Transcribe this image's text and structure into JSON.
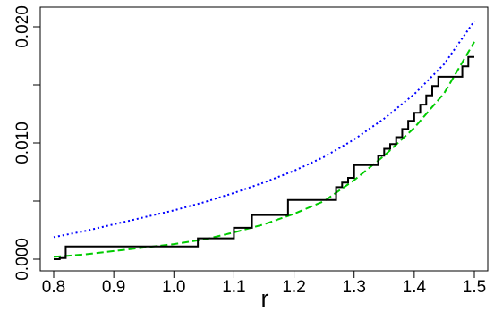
{
  "chart_data": {
    "type": "line",
    "title": "",
    "xlabel": "r",
    "ylabel": "",
    "xlim": [
      0.8,
      1.5
    ],
    "ylim": [
      0.0,
      0.02
    ],
    "x_ticks": [
      "0.8",
      "0.9",
      "1.0",
      "1.1",
      "1.2",
      "1.3",
      "1.4",
      "1.5"
    ],
    "y_ticks": [
      "0.000",
      "0.010",
      "0.020"
    ],
    "y_tick_values": [
      0.0,
      0.01,
      0.02
    ],
    "grid": false,
    "series": [
      {
        "style": "dotted",
        "color": "#0000ff",
        "x": [
          0.8,
          0.85,
          0.9,
          0.95,
          1.0,
          1.05,
          1.1,
          1.15,
          1.2,
          1.25,
          1.3,
          1.35,
          1.4,
          1.45,
          1.5
        ],
        "y": [
          0.0019,
          0.0024,
          0.003,
          0.0036,
          0.0042,
          0.0049,
          0.0057,
          0.0066,
          0.0076,
          0.0088,
          0.0103,
          0.0121,
          0.0142,
          0.0168,
          0.0205
        ]
      },
      {
        "style": "dashed",
        "color": "#00cc00",
        "x": [
          0.8,
          0.85,
          0.9,
          0.95,
          1.0,
          1.05,
          1.1,
          1.15,
          1.2,
          1.25,
          1.3,
          1.35,
          1.4,
          1.45,
          1.5
        ],
        "y": [
          0.0002,
          0.0004,
          0.0007,
          0.001,
          0.0013,
          0.0017,
          0.0023,
          0.003,
          0.0039,
          0.005,
          0.0068,
          0.0089,
          0.0113,
          0.0143,
          0.0187
        ]
      },
      {
        "style": "step",
        "color": "#000000",
        "x": [
          0.8,
          0.81,
          0.82,
          1.04,
          1.1,
          1.13,
          1.19,
          1.27,
          1.28,
          1.29,
          1.3,
          1.34,
          1.35,
          1.36,
          1.37,
          1.38,
          1.39,
          1.4,
          1.41,
          1.42,
          1.43,
          1.44,
          1.48,
          1.49,
          1.5
        ],
        "y": [
          0.0,
          0.0001,
          0.0011,
          0.0018,
          0.0027,
          0.0038,
          0.0051,
          0.0062,
          0.0066,
          0.007,
          0.0081,
          0.0089,
          0.0095,
          0.0099,
          0.0105,
          0.0112,
          0.0119,
          0.0126,
          0.0133,
          0.0141,
          0.0149,
          0.0157,
          0.0166,
          0.0174,
          0.0174
        ]
      }
    ]
  }
}
